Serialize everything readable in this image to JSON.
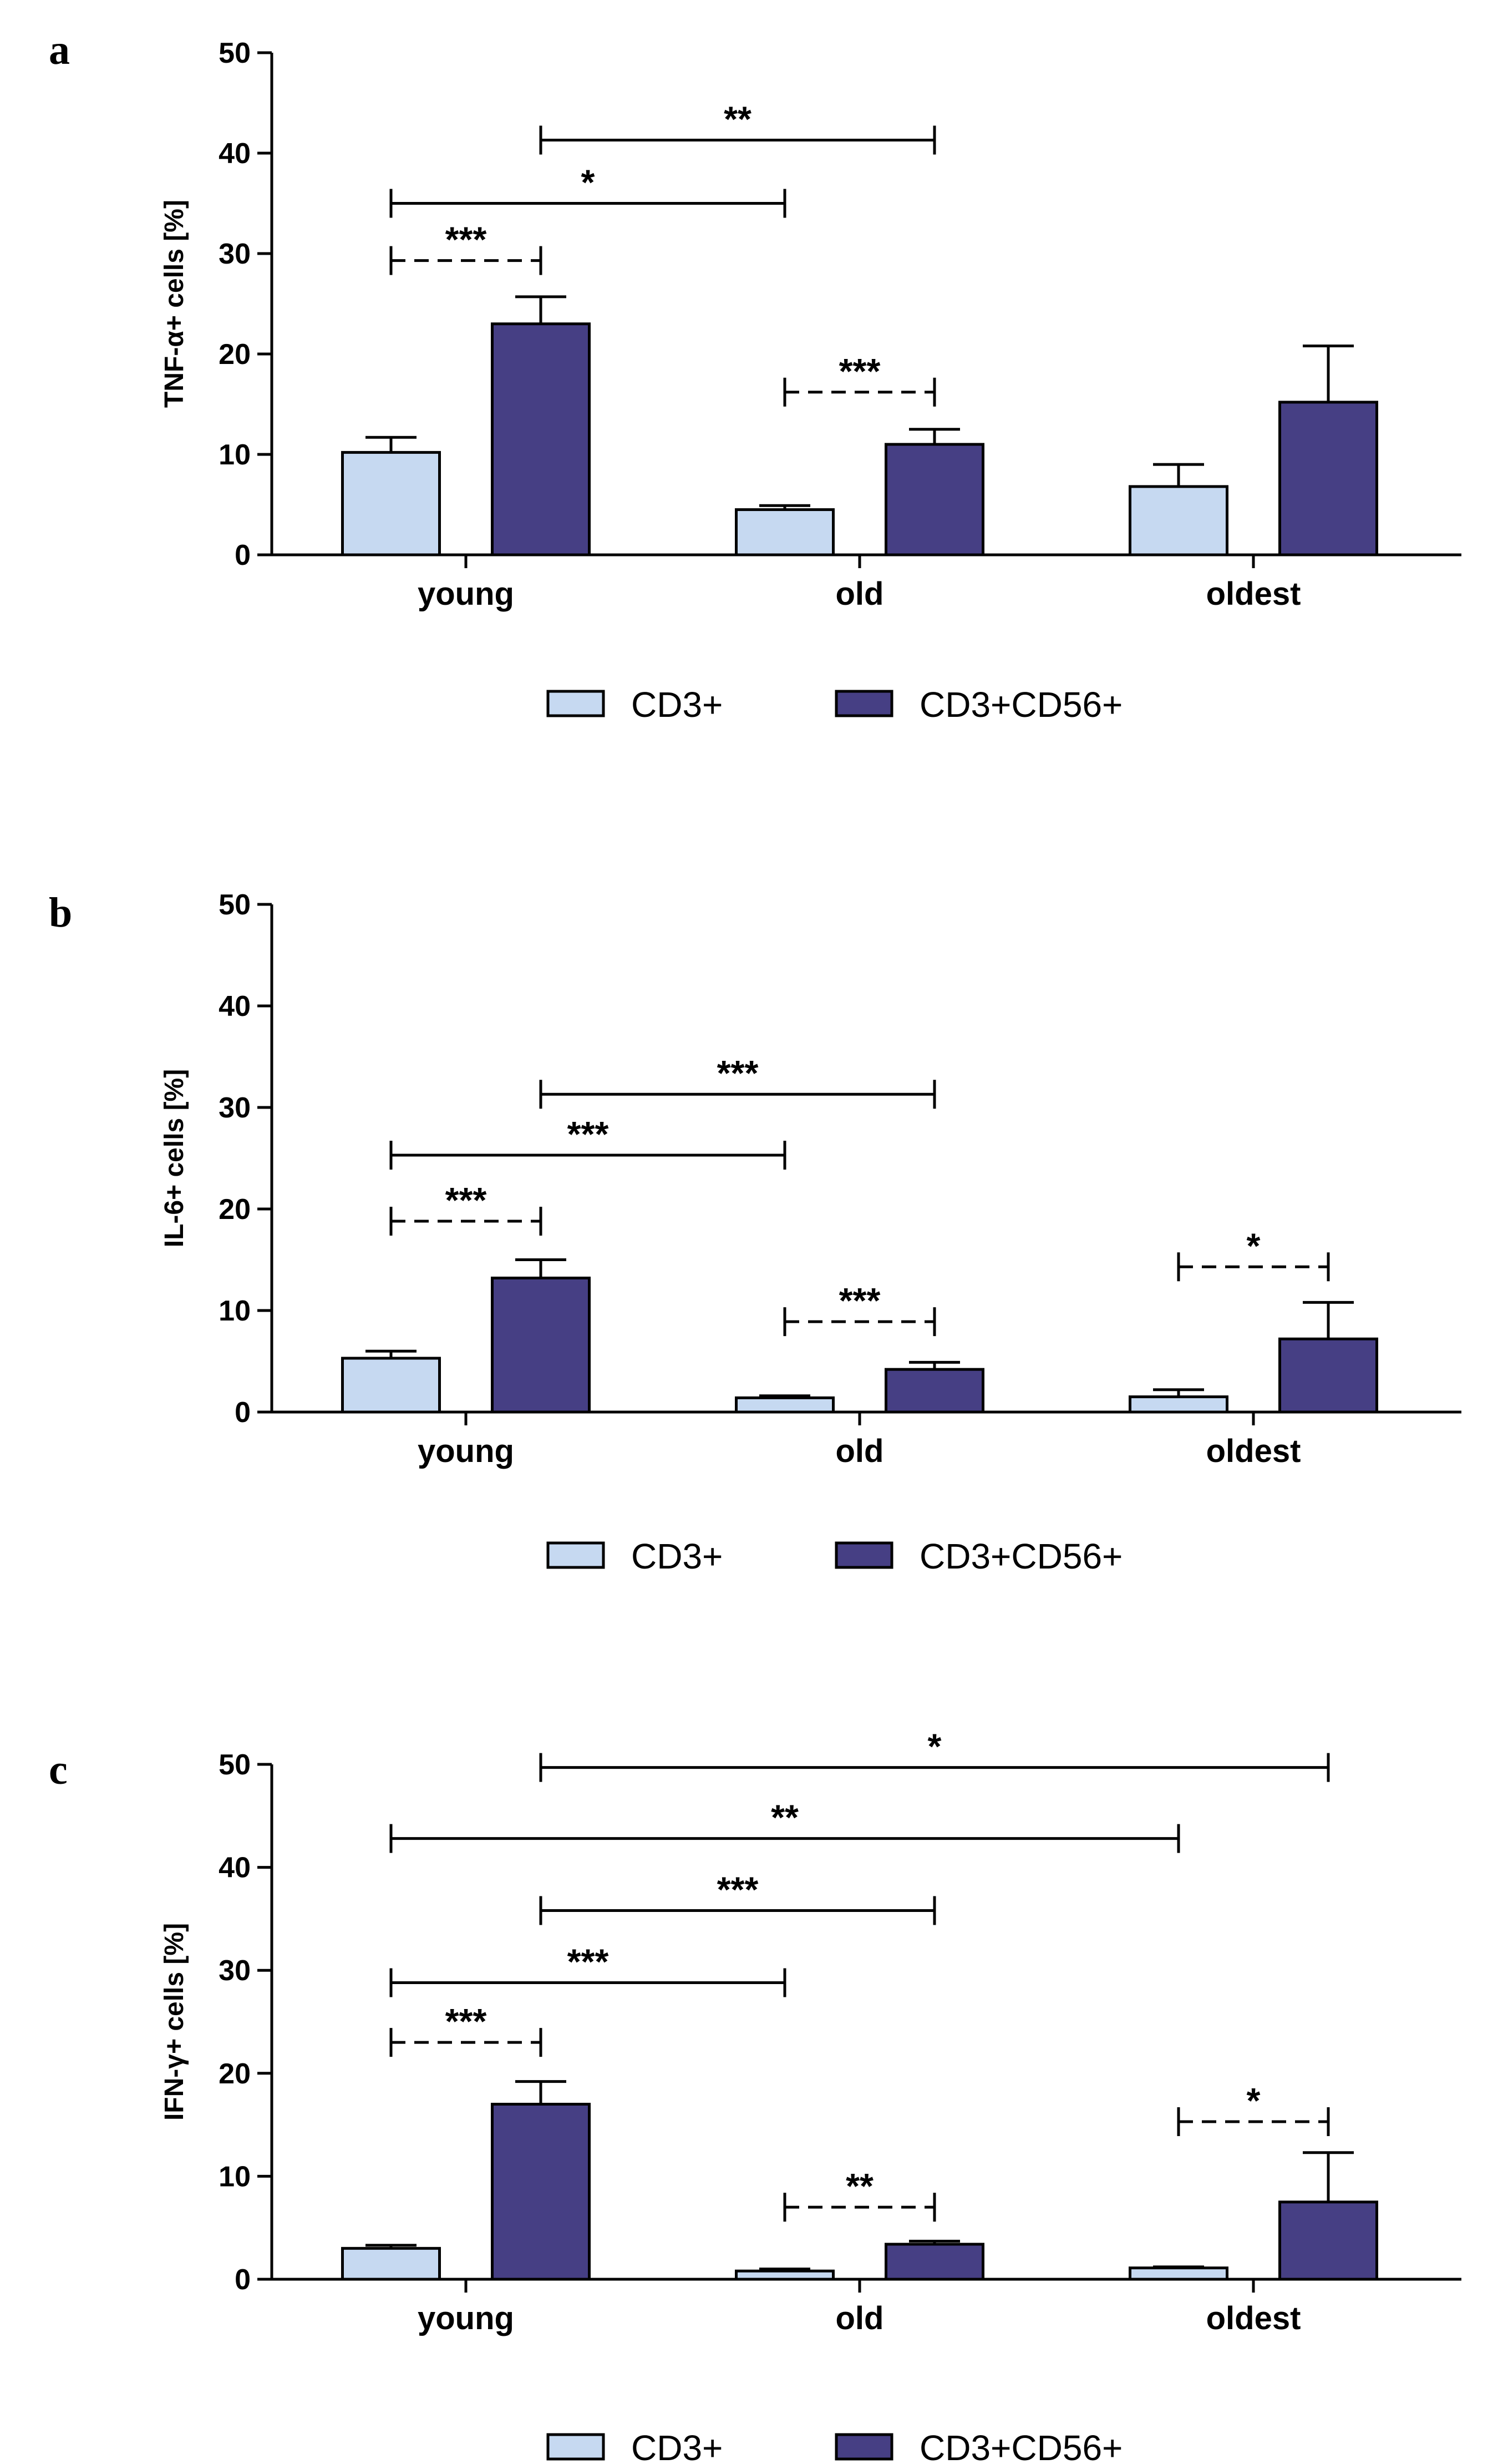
{
  "colors": {
    "cd3": "#c6d9f1",
    "cd3cd56": "#463f84",
    "stroke": "#000000"
  },
  "legend": [
    {
      "name": "CD3+",
      "color": "#c6d9f1"
    },
    {
      "name": "CD3+CD56+",
      "color": "#463f84"
    }
  ],
  "chart_data": [
    {
      "type": "bar",
      "panel_letter": "a",
      "ylabel": "TNF-α+ cells [%]",
      "ylim": [
        0,
        50
      ],
      "yticks": [
        "0",
        "10",
        "20",
        "30",
        "40",
        "50"
      ],
      "categories": [
        "young",
        "old",
        "oldest"
      ],
      "series": [
        {
          "name": "CD3+",
          "values": [
            10.2,
            4.5,
            6.8
          ],
          "errors": [
            1.5,
            0.4,
            2.2
          ]
        },
        {
          "name": "CD3+CD56+",
          "values": [
            23.0,
            11.0,
            15.2
          ],
          "errors": [
            2.7,
            1.5,
            5.6
          ]
        }
      ],
      "significance": [
        {
          "from": [
            0,
            0
          ],
          "to": [
            0,
            1
          ],
          "y": 29.3,
          "label": "***",
          "dashed": true
        },
        {
          "from": [
            0,
            0
          ],
          "to": [
            1,
            0
          ],
          "y": 35.0,
          "label": "*",
          "dashed": false
        },
        {
          "from": [
            0,
            1
          ],
          "to": [
            1,
            1
          ],
          "y": 41.3,
          "label": "**",
          "dashed": false
        },
        {
          "from": [
            1,
            0
          ],
          "to": [
            1,
            1
          ],
          "y": 16.2,
          "label": "***",
          "dashed": true
        }
      ]
    },
    {
      "type": "bar",
      "panel_letter": "b",
      "ylabel": "IL-6+ cells [%]",
      "ylim": [
        0,
        50
      ],
      "yticks": [
        "0",
        "10",
        "20",
        "30",
        "40",
        "50"
      ],
      "categories": [
        "young",
        "old",
        "oldest"
      ],
      "series": [
        {
          "name": "CD3+",
          "values": [
            5.3,
            1.4,
            1.5
          ],
          "errors": [
            0.7,
            0.2,
            0.7
          ]
        },
        {
          "name": "CD3+CD56+",
          "values": [
            13.2,
            4.2,
            7.2
          ],
          "errors": [
            1.8,
            0.7,
            3.6
          ]
        }
      ],
      "significance": [
        {
          "from": [
            0,
            0
          ],
          "to": [
            0,
            1
          ],
          "y": 18.8,
          "label": "***",
          "dashed": true
        },
        {
          "from": [
            0,
            0
          ],
          "to": [
            1,
            0
          ],
          "y": 25.3,
          "label": "***",
          "dashed": false
        },
        {
          "from": [
            0,
            1
          ],
          "to": [
            1,
            1
          ],
          "y": 31.3,
          "label": "***",
          "dashed": false
        },
        {
          "from": [
            1,
            0
          ],
          "to": [
            1,
            1
          ],
          "y": 8.9,
          "label": "***",
          "dashed": true
        },
        {
          "from": [
            2,
            0
          ],
          "to": [
            2,
            1
          ],
          "y": 14.3,
          "label": "*",
          "dashed": true
        }
      ]
    },
    {
      "type": "bar",
      "panel_letter": "c",
      "ylabel": "IFN-γ+ cells [%]",
      "ylim": [
        0,
        50
      ],
      "yticks": [
        "0",
        "10",
        "20",
        "30",
        "40",
        "50"
      ],
      "categories": [
        "young",
        "old",
        "oldest"
      ],
      "series": [
        {
          "name": "CD3+",
          "values": [
            3.0,
            0.8,
            1.1
          ],
          "errors": [
            0.3,
            0.2,
            0.1
          ]
        },
        {
          "name": "CD3+CD56+",
          "values": [
            17.0,
            3.4,
            7.5
          ],
          "errors": [
            2.2,
            0.3,
            4.8
          ]
        }
      ],
      "significance": [
        {
          "from": [
            0,
            0
          ],
          "to": [
            0,
            1
          ],
          "y": 23.0,
          "label": "***",
          "dashed": true
        },
        {
          "from": [
            0,
            0
          ],
          "to": [
            1,
            0
          ],
          "y": 28.8,
          "label": "***",
          "dashed": false
        },
        {
          "from": [
            0,
            1
          ],
          "to": [
            1,
            1
          ],
          "y": 35.8,
          "label": "***",
          "dashed": false
        },
        {
          "from": [
            0,
            0
          ],
          "to": [
            2,
            0
          ],
          "y": 42.8,
          "label": "**",
          "dashed": false
        },
        {
          "from": [
            0,
            1
          ],
          "to": [
            2,
            1
          ],
          "y": 49.7,
          "label": "*",
          "dashed": false
        },
        {
          "from": [
            1,
            0
          ],
          "to": [
            1,
            1
          ],
          "y": 7.0,
          "label": "**",
          "dashed": true
        },
        {
          "from": [
            2,
            0
          ],
          "to": [
            2,
            1
          ],
          "y": 15.3,
          "label": "*",
          "dashed": true
        }
      ]
    }
  ]
}
